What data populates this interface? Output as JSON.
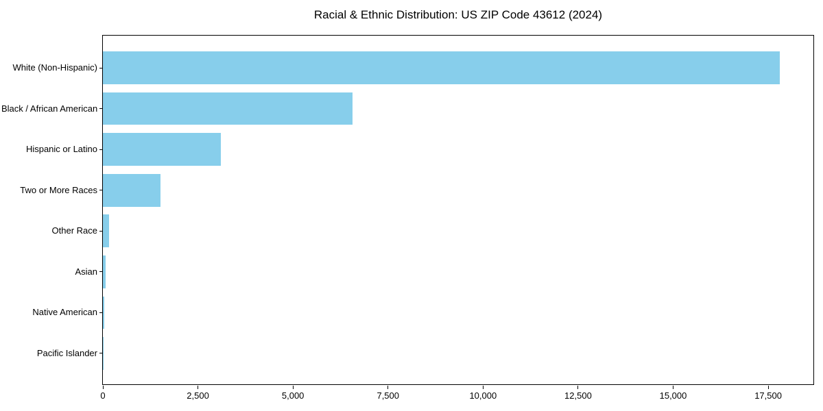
{
  "chart_data": {
    "type": "bar",
    "orientation": "horizontal",
    "title": "Racial & Ethnic Distribution: US ZIP Code 43612 (2024)",
    "categories": [
      "White (Non-Hispanic)",
      "Black / African American",
      "Hispanic or Latino",
      "Two or More Races",
      "Other Race",
      "Asian",
      "Native American",
      "Pacific Islander"
    ],
    "values": [
      17800,
      6570,
      3100,
      1520,
      170,
      70,
      30,
      10
    ],
    "xlabel": "",
    "ylabel": "",
    "xlim": [
      0,
      18725
    ],
    "x_ticks": [
      0,
      2500,
      5000,
      7500,
      10000,
      12500,
      15000,
      17500
    ],
    "x_tick_labels": [
      "0",
      "2,500",
      "5,000",
      "7,500",
      "10,000",
      "12,500",
      "15,000",
      "17,500"
    ],
    "bar_color": "#87CEEB",
    "text_color": "#000000",
    "spine_color": "#000000",
    "grid": false,
    "legend": null
  }
}
